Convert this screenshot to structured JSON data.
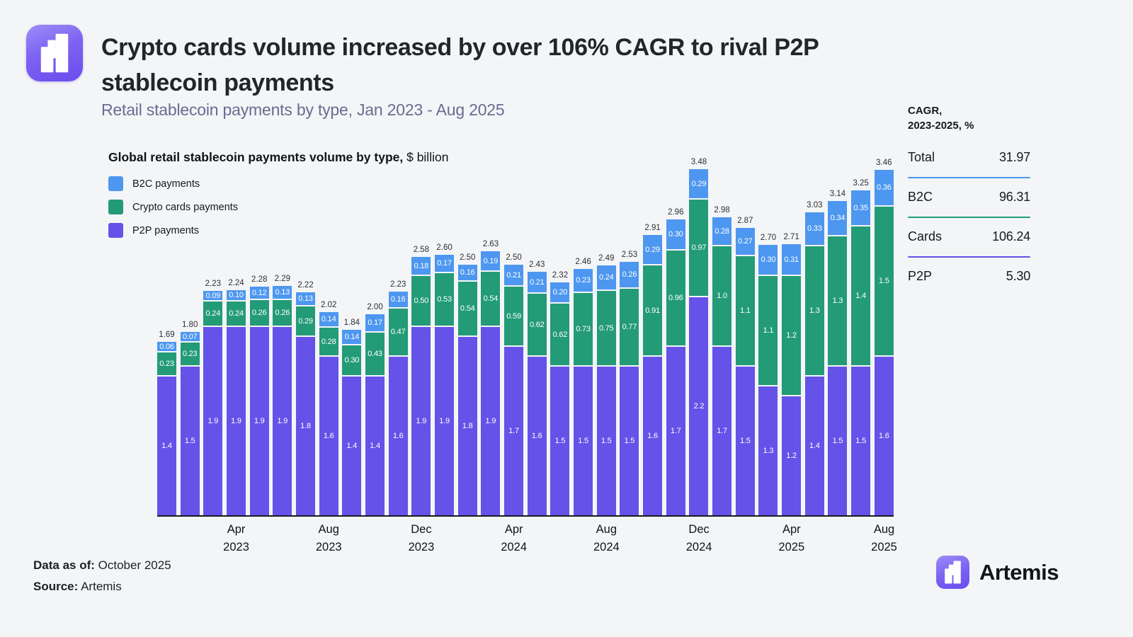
{
  "header": {
    "title_line1": "Crypto cards volume increased by over 106% CAGR to rival P2P",
    "title_line2": "stablecoin payments",
    "subtitle": "Retail stablecoin payments by type, Jan 2023 - Aug 2025"
  },
  "chart": {
    "title_bold": "Global retail stablecoin payments volume by type,",
    "title_unit": " $ billion",
    "legend": [
      {
        "label": "B2C payments",
        "color": "#4D97F0"
      },
      {
        "label": "Crypto cards payments",
        "color": "#239B77"
      },
      {
        "label": "P2P payments",
        "color": "#6552E8"
      }
    ]
  },
  "chart_data": {
    "type": "bar",
    "stacked": true,
    "title": "Global retail stablecoin payments volume by type, $ billion",
    "xlabel": "",
    "ylabel": "$ billion",
    "ylim": [
      0,
      3.6
    ],
    "grid": false,
    "legend_position": "top-left",
    "categories": [
      "Jan 2023",
      "Feb 2023",
      "Mar 2023",
      "Apr 2023",
      "May 2023",
      "Jun 2023",
      "Jul 2023",
      "Aug 2023",
      "Sep 2023",
      "Oct 2023",
      "Nov 2023",
      "Dec 2023",
      "Jan 2024",
      "Feb 2024",
      "Mar 2024",
      "Apr 2024",
      "May 2024",
      "Jun 2024",
      "Jul 2024",
      "Aug 2024",
      "Sep 2024",
      "Oct 2024",
      "Nov 2024",
      "Dec 2024",
      "Jan 2025",
      "Feb 2025",
      "Mar 2025",
      "Apr 2025",
      "May 2025",
      "Jun 2025",
      "Jul 2025",
      "Aug 2025"
    ],
    "series": [
      {
        "name": "B2C payments",
        "color": "#4D97F0",
        "labels": [
          "0.06",
          "0.07",
          "0.09",
          "0.10",
          "0.12",
          "0.13",
          "0.13",
          "0.14",
          "0.14",
          "0.17",
          "0.16",
          "0.18",
          "0.17",
          "0.16",
          "0.19",
          "0.21",
          "0.21",
          "0.20",
          "0.23",
          "0.24",
          "0.26",
          "0.29",
          "0.30",
          "0.29",
          "0.28",
          "0.27",
          "0.30",
          "0.31",
          "0.33",
          "0.34",
          "0.35",
          "0.36"
        ]
      },
      {
        "name": "Crypto cards payments",
        "color": "#239B77",
        "labels": [
          "0.23",
          "0.23",
          "0.24",
          "0.24",
          "0.26",
          "0.26",
          "0.29",
          "0.28",
          "0.30",
          "0.43",
          "0.47",
          "0.50",
          "0.53",
          "0.54",
          "0.54",
          "0.59",
          "0.62",
          "0.62",
          "0.73",
          "0.75",
          "0.77",
          "0.91",
          "0.96",
          "0.97",
          "1.0",
          "1.1",
          "1.1",
          "1.2",
          "1.3",
          "1.3",
          "1.4",
          "1.5"
        ]
      },
      {
        "name": "P2P payments",
        "color": "#6552E8",
        "labels": [
          "1.4",
          "1.5",
          "1.9",
          "1.9",
          "1.9",
          "1.9",
          "1.8",
          "1.6",
          "1.4",
          "1.4",
          "1.6",
          "1.9",
          "1.9",
          "1.8",
          "1.9",
          "1.7",
          "1.6",
          "1.5",
          "1.5",
          "1.5",
          "1.5",
          "1.6",
          "1.7",
          "2.2",
          "1.7",
          "1.5",
          "1.3",
          "1.2",
          "1.4",
          "1.5",
          "1.5",
          "1.6"
        ]
      }
    ],
    "totals": [
      "1.69",
      "1.80",
      "2.23",
      "2.24",
      "2.28",
      "2.29",
      "2.22",
      "2.02",
      "1.84",
      "2.00",
      "2.23",
      "2.58",
      "2.60",
      "2.50",
      "2.63",
      "2.50",
      "2.43",
      "2.32",
      "2.46",
      "2.49",
      "2.53",
      "2.91",
      "2.96",
      "3.48",
      "2.98",
      "2.87",
      "2.70",
      "2.71",
      "3.03",
      "3.14",
      "3.25",
      "3.46"
    ],
    "x_ticks": [
      {
        "index": 3,
        "month": "Apr",
        "year": "2023"
      },
      {
        "index": 7,
        "month": "Aug",
        "year": "2023"
      },
      {
        "index": 11,
        "month": "Dec",
        "year": "2023"
      },
      {
        "index": 15,
        "month": "Apr",
        "year": "2024"
      },
      {
        "index": 19,
        "month": "Aug",
        "year": "2024"
      },
      {
        "index": 23,
        "month": "Dec",
        "year": "2024"
      },
      {
        "index": 27,
        "month": "Apr",
        "year": "2025"
      },
      {
        "index": 31,
        "month": "Aug",
        "year": "2025"
      }
    ]
  },
  "cagr": {
    "title_line1": "CAGR,",
    "title_line2": "2023-2025, %",
    "rows": [
      {
        "label": "Total",
        "value": "31.97",
        "line_color": null
      },
      {
        "label": "B2C",
        "value": "96.31",
        "line_color": "#4D97F0"
      },
      {
        "label": "Cards",
        "value": "106.24",
        "line_color": "#239B77"
      },
      {
        "label": "P2P",
        "value": "5.30",
        "line_color": "#6552E8"
      }
    ]
  },
  "footer": {
    "data_as_of_label": "Data as of:",
    "data_as_of_value": "October 2025",
    "source_label": "Source:",
    "source_value": "Artemis"
  },
  "brand": {
    "name": "Artemis"
  }
}
